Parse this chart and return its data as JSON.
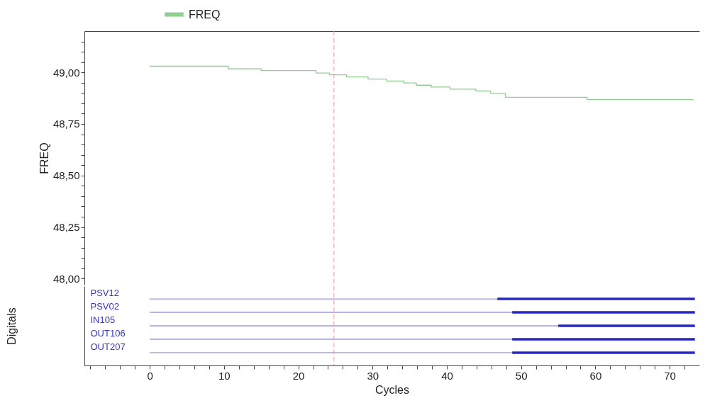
{
  "chart_data": [
    {
      "type": "step",
      "ylabel": "FREQ",
      "legend": "top left",
      "tick_labels": "y",
      "xlim": [
        -8.8,
        74
      ],
      "ylim": [
        47.97,
        49.2
      ],
      "yticks": [
        {
          "value": 48,
          "label": "48,00"
        },
        {
          "value": 48.05,
          "label": null
        },
        {
          "value": 48.1,
          "label": null
        },
        {
          "value": 48.15,
          "label": null
        },
        {
          "value": 48.2,
          "label": null
        },
        {
          "value": 48.25,
          "label": "48,25"
        },
        {
          "value": 48.3,
          "label": null
        },
        {
          "value": 48.35,
          "label": null
        },
        {
          "value": 48.4,
          "label": null
        },
        {
          "value": 48.45,
          "label": null
        },
        {
          "value": 48.5,
          "label": "48,50"
        },
        {
          "value": 48.55,
          "label": null
        },
        {
          "value": 48.6,
          "label": null
        },
        {
          "value": 48.65,
          "label": null
        },
        {
          "value": 48.7,
          "label": null
        },
        {
          "value": 48.75,
          "label": "48,75"
        },
        {
          "value": 48.8,
          "label": null
        },
        {
          "value": 48.85,
          "label": null
        },
        {
          "value": 48.9,
          "label": null
        },
        {
          "value": 48.95,
          "label": null
        },
        {
          "value": 49,
          "label": "49,00"
        },
        {
          "value": 49.05,
          "label": null
        },
        {
          "value": 49.1,
          "label": null
        },
        {
          "value": 49.15,
          "label": null
        }
      ],
      "x": [
        0,
        10.6,
        15,
        22.4,
        24.2,
        26.5,
        29.4,
        31.9,
        34.2,
        35.9,
        37.9,
        40.4,
        43.9,
        45.9,
        47.9,
        58.9,
        73.2
      ],
      "series": [
        {
          "name": "FREQ",
          "color": "#8fcf8f",
          "values": [
            49.03,
            49.017,
            49.009,
            48.997,
            48.988,
            48.978,
            48.968,
            48.958,
            48.949,
            48.938,
            48.929,
            48.919,
            48.91,
            48.898,
            48.879,
            48.868,
            48.868
          ]
        }
      ],
      "ref_lines": [
        {
          "axis": "x",
          "value": 24.8,
          "color": "#e89a9a",
          "line_style": "dashed"
        }
      ]
    },
    {
      "type": "bar",
      "orientation": "horizontal",
      "stacked": true,
      "xlabel": "Cycles",
      "ylabel": "Digitals",
      "xlim": [
        -8.8,
        74
      ],
      "xticks": [
        {
          "value": -8,
          "label": null
        },
        {
          "value": -6,
          "label": null
        },
        {
          "value": -4,
          "label": null
        },
        {
          "value": -2,
          "label": null
        },
        0,
        {
          "value": 2,
          "label": null
        },
        {
          "value": 4,
          "label": null
        },
        {
          "value": 6,
          "label": null
        },
        {
          "value": 8,
          "label": null
        },
        10,
        {
          "value": 12,
          "label": null
        },
        {
          "value": 14,
          "label": null
        },
        {
          "value": 16,
          "label": null
        },
        {
          "value": 18,
          "label": null
        },
        20,
        {
          "value": 22,
          "label": null
        },
        {
          "value": 24,
          "label": null
        },
        {
          "value": 26,
          "label": null
        },
        {
          "value": 28,
          "label": null
        },
        30,
        {
          "value": 32,
          "label": null
        },
        {
          "value": 34,
          "label": null
        },
        {
          "value": 36,
          "label": null
        },
        {
          "value": 38,
          "label": null
        },
        40,
        {
          "value": 42,
          "label": null
        },
        {
          "value": 44,
          "label": null
        },
        {
          "value": 46,
          "label": null
        },
        {
          "value": 48,
          "label": null
        },
        50,
        {
          "value": 52,
          "label": null
        },
        {
          "value": 54,
          "label": null
        },
        {
          "value": 56,
          "label": null
        },
        {
          "value": 58,
          "label": null
        },
        60,
        {
          "value": 62,
          "label": null
        },
        {
          "value": 64,
          "label": null
        },
        {
          "value": 66,
          "label": null
        },
        {
          "value": 68,
          "label": null
        },
        70,
        {
          "value": 72,
          "label": null
        }
      ],
      "categories": [
        "PSV12",
        "PSV02",
        "IN105",
        "OUT106",
        "OUT207"
      ],
      "series": [
        {
          "color": "#9a9af0",
          "values": [
            46.8,
            48.8,
            55,
            48.8,
            48.8
          ]
        },
        {
          "color": "#2424d0",
          "values": [
            26.6,
            24.6,
            18.4,
            24.6,
            24.6
          ]
        }
      ],
      "ref_lines": [
        {
          "axis": "x",
          "value": 24.8,
          "color": "#e89a9a",
          "line_style": "dashed"
        }
      ]
    }
  ]
}
